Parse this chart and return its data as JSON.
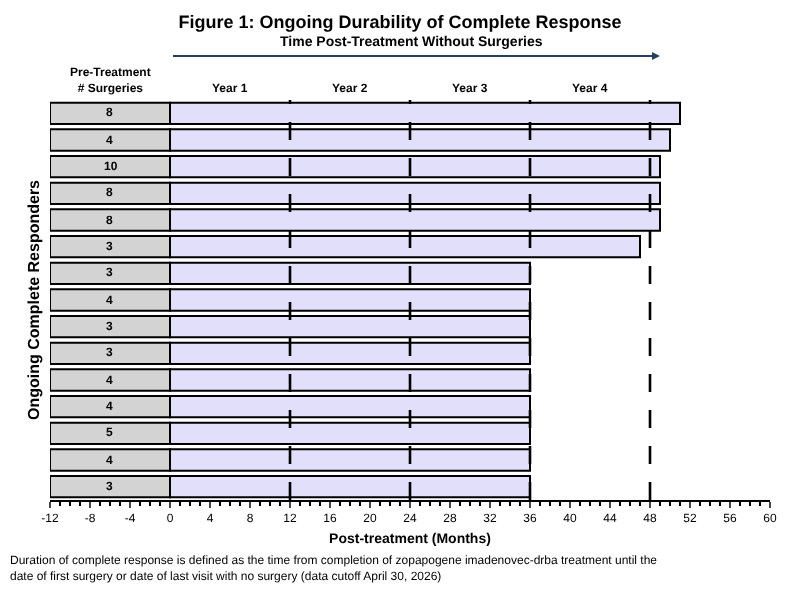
{
  "chart_data": {
    "type": "bar",
    "orientation": "horizontal",
    "title": "Figure 1: Ongoing Durability of Complete Response",
    "xlabel": "Post-treatment (Months)",
    "ylabel": "Ongoing Complete Responders",
    "categories": [
      "8",
      "4",
      "10",
      "8",
      "8",
      "3",
      "3",
      "4",
      "3",
      "3",
      "4",
      "4",
      "5",
      "4",
      "3"
    ],
    "series": [
      {
        "color": "#d3d3d3",
        "base": [
          -12,
          -12,
          -12,
          -12,
          -12,
          -12,
          -12,
          -12,
          -12,
          -12,
          -12,
          -12,
          -12,
          -12,
          -12
        ],
        "values": [
          12,
          12,
          12,
          12,
          12,
          12,
          12,
          12,
          12,
          12,
          12,
          12,
          12,
          12,
          12
        ]
      },
      {
        "color": "#e2dffb",
        "base": [
          0,
          0,
          0,
          0,
          0,
          0,
          0,
          0,
          0,
          0,
          0,
          0,
          0,
          0,
          0
        ],
        "values": [
          51,
          50,
          49,
          49,
          49,
          47,
          36,
          36,
          36,
          36,
          36,
          36,
          36,
          36,
          36
        ]
      }
    ],
    "xlim": [
      -12,
      60
    ],
    "xticks": [
      -12,
      -8,
      -4,
      0,
      4,
      8,
      12,
      16,
      20,
      24,
      28,
      32,
      36,
      40,
      44,
      48,
      52,
      56,
      60
    ],
    "ref_lines": [
      {
        "axis": "x",
        "value": 12,
        "color": "#000000",
        "line_style": "dashed"
      },
      {
        "axis": "x",
        "value": 24,
        "color": "#000000",
        "line_style": "dashed"
      },
      {
        "axis": "x",
        "value": 36,
        "color": "#000000",
        "line_style": "dashed"
      },
      {
        "axis": "x",
        "value": 48,
        "color": "#000000",
        "line_style": "dashed"
      }
    ],
    "annotations": [
      "Pre-Treatment\n# Surgeries",
      "Time Post-Treatment Without Surgeries",
      "Year 1",
      "Year 2",
      "Year 3",
      "Year 4",
      "Duration of complete response is defined as the time from completion of zopapogene imadenovec-drba treatment until the date of first surgery or date of last visit with no surgery (data cutoff April 30, 2026)"
    ]
  }
}
